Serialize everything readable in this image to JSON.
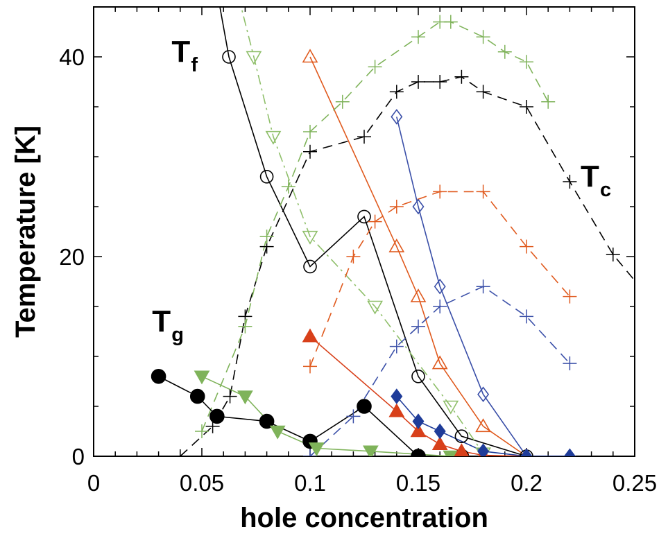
{
  "chart_data": {
    "type": "scatter",
    "xlabel": "hole concentration",
    "ylabel": "Temperature [K]",
    "xlim": [
      0,
      0.25
    ],
    "ylim": [
      0,
      45
    ],
    "xticks": [
      0,
      0.05,
      0.1,
      0.15,
      0.2,
      0.25
    ],
    "xtick_labels": [
      "0",
      "0.05",
      "0.1",
      "0.15",
      "0.2",
      "0.25"
    ],
    "yticks": [
      0,
      20,
      40
    ],
    "ytick_labels": [
      "0",
      "20",
      "40"
    ],
    "grid": false,
    "legend": "none",
    "annotations": [
      {
        "main": "T",
        "sub": "f",
        "x": 0.036,
        "y": 39.5
      },
      {
        "main": "T",
        "sub": "c",
        "x": 0.225,
        "y": 27.0
      },
      {
        "main": "T",
        "sub": "g",
        "x": 0.027,
        "y": 12.5
      }
    ],
    "series": [
      {
        "color": "#000000",
        "line": "solid",
        "marker": "open-circle",
        "x": [
          0.0575,
          0.0625,
          0.08,
          0.1,
          0.125,
          0.15,
          0.17,
          0.2
        ],
        "y": [
          46,
          40,
          28,
          19,
          24,
          8,
          2,
          0
        ]
      },
      {
        "color": "#8fbf6a",
        "line": "dashdot",
        "marker": "open-triangle-down",
        "x": [
          0.067,
          0.074,
          0.083,
          0.1,
          0.13,
          0.165,
          0.18
        ],
        "y": [
          46,
          40,
          32,
          22,
          15,
          5,
          0.3
        ]
      },
      {
        "color": "#e05a1e",
        "line": "solid",
        "marker": "open-triangle-up",
        "x": [
          0.1,
          0.14,
          0.15,
          0.16,
          0.18,
          0.2
        ],
        "y": [
          40,
          21,
          16,
          9.3,
          3,
          0
        ]
      },
      {
        "color": "#3a4fa8",
        "line": "solid",
        "marker": "open-diamond",
        "x": [
          0.14,
          0.15,
          0.16,
          0.18,
          0.2,
          0.22
        ],
        "y": [
          34,
          25,
          17,
          6.2,
          0,
          0
        ]
      },
      {
        "color": "#000000",
        "line": "dashed",
        "marker": "plus",
        "x": [
          0.04,
          0.055,
          0.063,
          0.07,
          0.08,
          0.1,
          0.125,
          0.14,
          0.15,
          0.16,
          0.17,
          0.18,
          0.2,
          0.22,
          0.24,
          0.26
        ],
        "y": [
          0,
          3,
          6,
          14,
          21,
          30.5,
          32,
          36.5,
          37.5,
          37.5,
          38,
          36.5,
          35,
          27.5,
          20.2,
          15
        ]
      },
      {
        "color": "#7fb35a",
        "line": "dashed",
        "marker": "plus",
        "x": [
          0.05,
          0.07,
          0.08,
          0.09,
          0.1,
          0.115,
          0.13,
          0.15,
          0.16,
          0.165,
          0.18,
          0.19,
          0.2,
          0.21
        ],
        "y": [
          2.5,
          13,
          22,
          27,
          32.5,
          35.5,
          39,
          42,
          43.5,
          43.5,
          42,
          40.5,
          39.5,
          35.5
        ]
      },
      {
        "color": "#e05a1e",
        "line": "dashed",
        "marker": "plus",
        "x": [
          0.1,
          0.12,
          0.13,
          0.14,
          0.16,
          0.18,
          0.2,
          0.22
        ],
        "y": [
          9,
          20,
          23.5,
          25,
          26.5,
          26.5,
          21,
          16
        ]
      },
      {
        "color": "#3a4fa8",
        "line": "dashed",
        "marker": "plus",
        "x": [
          0.1,
          0.12,
          0.14,
          0.15,
          0.16,
          0.18,
          0.2,
          0.22
        ],
        "y": [
          0,
          4,
          11,
          13,
          15,
          17,
          14,
          9.3
        ]
      },
      {
        "color": "#000000",
        "line": "solid",
        "marker": "filled-circle",
        "x": [
          0.03,
          0.048,
          0.057,
          0.08,
          0.1,
          0.125,
          0.15,
          0.17
        ],
        "y": [
          8,
          6,
          4,
          3.5,
          1.5,
          5,
          0,
          0
        ]
      },
      {
        "color": "#7fb35a",
        "line": "solid",
        "marker": "filled-triangle-down",
        "x": [
          0.05,
          0.07,
          0.085,
          0.103,
          0.128,
          0.165
        ],
        "y": [
          8,
          6,
          2.5,
          0.8,
          0.5,
          0
        ]
      },
      {
        "color": "#d8401a",
        "line": "solid",
        "marker": "filled-triangle-up",
        "x": [
          0.1,
          0.14,
          0.15,
          0.16,
          0.17,
          0.18,
          0.2
        ],
        "y": [
          12,
          4.5,
          2.5,
          1.2,
          0.5,
          0.1,
          0
        ]
      },
      {
        "color": "#1f3c99",
        "line": "solid",
        "marker": "filled-diamond",
        "x": [
          0.14,
          0.15,
          0.16,
          0.18,
          0.2,
          0.22
        ],
        "y": [
          6,
          3.5,
          2.5,
          0.5,
          0,
          0
        ]
      }
    ]
  }
}
